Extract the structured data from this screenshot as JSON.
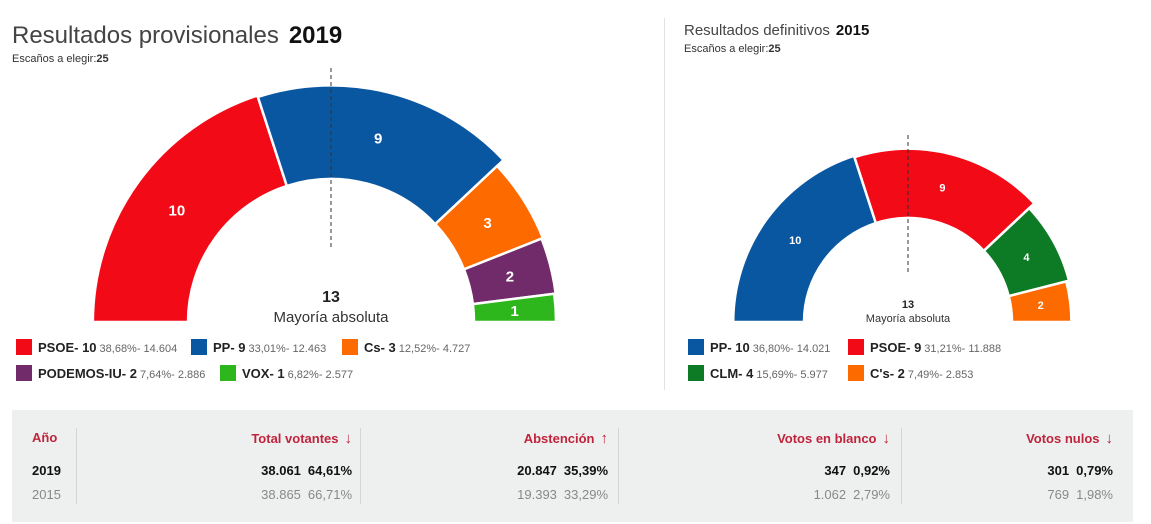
{
  "panels": {
    "p2019": {
      "title": "Resultados provisionales",
      "year": "2019",
      "seats_label": "Escaños a elegir:",
      "seats_total": "25",
      "majority_number": "13",
      "majority_label": "Mayoría absoluta",
      "legend": [
        {
          "name": "PSOE- 10",
          "detail": "38,68%- 14.604",
          "color": "#f20a17"
        },
        {
          "name": "PP- 9",
          "detail": "33,01%- 12.463",
          "color": "#0a57a1"
        },
        {
          "name": "Cs- 3",
          "detail": "12,52%- 4.727",
          "color": "#fd6a00"
        },
        {
          "name": "PODEMOS-IU- 2",
          "detail": "7,64%- 2.886",
          "color": "#722b6a"
        },
        {
          "name": "VOX- 1",
          "detail": "6,82%- 2.577",
          "color": "#2db71c"
        }
      ]
    },
    "p2015": {
      "title": "Resultados definitivos",
      "year": "2015",
      "seats_label": "Escaños a elegir:",
      "seats_total": "25",
      "majority_number": "13",
      "majority_label": "Mayoría absoluta",
      "legend": [
        {
          "name": "PP- 10",
          "detail": "36,80%- 14.021",
          "color": "#0a57a1"
        },
        {
          "name": "PSOE- 9",
          "detail": "31,21%- 11.888",
          "color": "#f20a17"
        },
        {
          "name": "CLM- 4",
          "detail": "15,69%- 5.977",
          "color": "#0d7a25"
        },
        {
          "name": "C's- 2",
          "detail": "7,49%- 2.853",
          "color": "#fd6a00"
        }
      ]
    }
  },
  "chart_data": [
    {
      "type": "pie",
      "variant": "half-donut parliament",
      "total_seats": 25,
      "majority": 13,
      "series": [
        {
          "name": "PSOE",
          "seats": 10,
          "color": "#f20a17"
        },
        {
          "name": "PP",
          "seats": 9,
          "color": "#0a57a1"
        },
        {
          "name": "Cs",
          "seats": 3,
          "color": "#fd6a00"
        },
        {
          "name": "PODEMOS-IU",
          "seats": 2,
          "color": "#722b6a"
        },
        {
          "name": "VOX",
          "seats": 1,
          "color": "#2db71c"
        }
      ]
    },
    {
      "type": "pie",
      "variant": "half-donut parliament",
      "total_seats": 25,
      "majority": 13,
      "series": [
        {
          "name": "PP",
          "seats": 10,
          "color": "#0a57a1"
        },
        {
          "name": "PSOE",
          "seats": 9,
          "color": "#f20a17"
        },
        {
          "name": "CLM",
          "seats": 4,
          "color": "#0d7a25"
        },
        {
          "name": "C's",
          "seats": 2,
          "color": "#fd6a00"
        }
      ]
    }
  ],
  "table": {
    "year_header": "Año",
    "columns": [
      {
        "header": "Total votantes",
        "arrow": "↓",
        "v2019": "38.061",
        "p2019": "64,61%",
        "v2015": "38.865",
        "p2015": "66,71%"
      },
      {
        "header": "Abstención",
        "arrow": "↑",
        "v2019": "20.847",
        "p2019": "35,39%",
        "v2015": "19.393",
        "p2015": "33,29%"
      },
      {
        "header": "Votos en blanco",
        "arrow": "↓",
        "v2019": "347",
        "p2019": "0,92%",
        "v2015": "1.062",
        "p2015": "2,79%"
      },
      {
        "header": "Votos nulos",
        "arrow": "↓",
        "v2019": "301",
        "p2019": "0,79%",
        "v2015": "769",
        "p2015": "1,98%"
      }
    ],
    "rows": [
      "2019",
      "2015"
    ]
  }
}
